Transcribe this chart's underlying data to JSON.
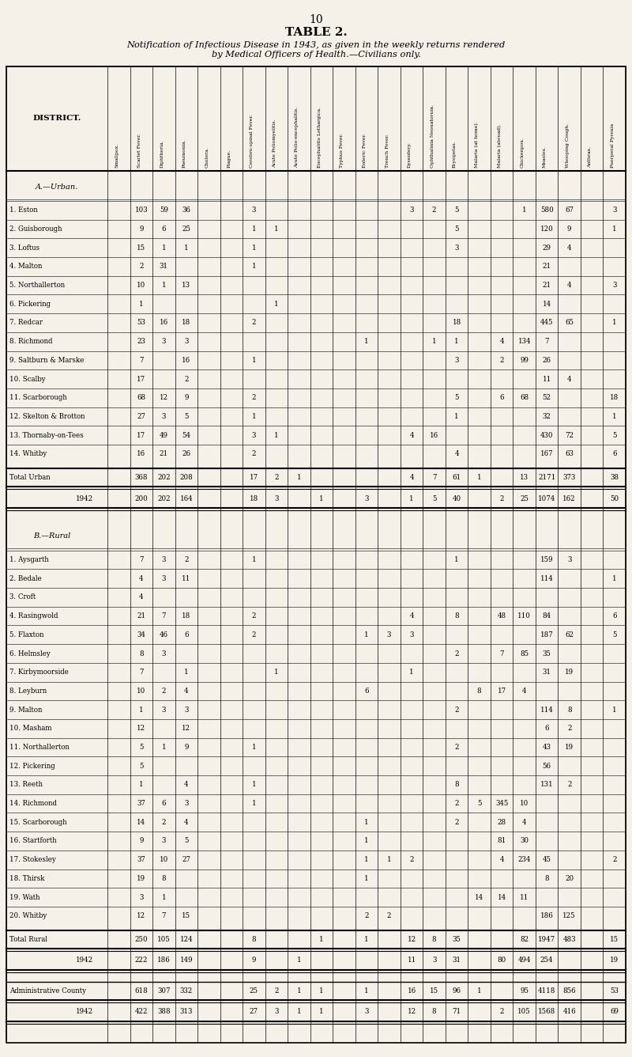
{
  "page_number": "10",
  "title": "TABLE 2.",
  "subtitle": "Notification of Infectious Disease in 1943, as given in the weekly returns rendered\nby Medical Officers of Health.—Civilians only.",
  "background_color": "#f5f0e8",
  "col_headers": [
    "Smallpox.",
    "Scarlet Fever.",
    "Diphtheria.",
    "Pneumonia.",
    "Cholera.",
    "Plague.",
    "Cerebro-spinal Fever.",
    "Acute Poliomyelitis.",
    "Acute Polio-encephalitis.",
    "Encephalitis Lethargica.",
    "Typhus Fever.",
    "Enteric Fever.",
    "Trench Fever.",
    "Dysentery.",
    "Ophthalmia Neonatorum.",
    "Erysipelas.",
    "Malaria (at home).",
    "Malaria (abroad).",
    "Chickenpox.",
    "Measles.",
    "Whooping Cough.",
    "Anthrax.",
    "Puerperal Pyrexia"
  ],
  "section_urban_label": "A.—Urban.",
  "section_rural_label": "B.—Rural",
  "urban_rows": [
    [
      "1. Eston",
      "",
      "103",
      "59",
      "36",
      "",
      "",
      "3",
      "",
      "",
      "",
      "",
      "",
      "",
      "3",
      "2",
      "5",
      "",
      "",
      "1",
      "580",
      "67",
      "",
      "3"
    ],
    [
      "2. Guisborough",
      "",
      "9",
      "6",
      "25",
      "",
      "",
      "1",
      "1",
      "",
      "",
      "",
      "",
      "",
      "",
      "",
      "5",
      "",
      "",
      "",
      "120",
      "9",
      "",
      "1"
    ],
    [
      "3. Loftus",
      "",
      "15",
      "1",
      "1",
      "",
      "",
      "1",
      "",
      "",
      "",
      "",
      "",
      "",
      "",
      "",
      "3",
      "",
      "",
      "",
      "29",
      "4",
      "",
      ""
    ],
    [
      "4. Malton",
      "",
      "2",
      "31",
      "",
      "",
      "",
      "1",
      "",
      "",
      "",
      "",
      "",
      "",
      "",
      "",
      "",
      "",
      "",
      "",
      "21",
      "",
      "",
      ""
    ],
    [
      "5. Northallerton",
      "",
      "10",
      "1",
      "13",
      "",
      "",
      "",
      "",
      "",
      "",
      "",
      "",
      "",
      "",
      "",
      "",
      "",
      "",
      "",
      "21",
      "4",
      "",
      "3"
    ],
    [
      "6. Pickering",
      "",
      "1",
      "",
      "",
      "",
      "",
      "",
      "1",
      "",
      "",
      "",
      "",
      "",
      "",
      "",
      "",
      "",
      "",
      "",
      "14",
      "",
      "",
      ""
    ],
    [
      "7. Redcar",
      "",
      "53",
      "16",
      "18",
      "",
      "",
      "2",
      "",
      "",
      "",
      "",
      "",
      "",
      "",
      "",
      "18",
      "",
      "",
      "",
      "445",
      "65",
      "",
      "1"
    ],
    [
      "8. Richmond",
      "",
      "23",
      "3",
      "3",
      "",
      "",
      "",
      "",
      "",
      "",
      "",
      "1",
      "",
      "",
      "1",
      "1",
      "",
      "4",
      "134",
      "7",
      "",
      "",
      ""
    ],
    [
      "9. Saltburn & Marske",
      "",
      "7",
      "",
      "16",
      "",
      "",
      "1",
      "",
      "",
      "",
      "",
      "",
      "",
      "",
      "",
      "3",
      "",
      "2",
      "99",
      "26",
      "",
      "",
      ""
    ],
    [
      "10. Scalby",
      "",
      "17",
      "",
      "2",
      "",
      "",
      "",
      "",
      "",
      "",
      "",
      "",
      "",
      "",
      "",
      "",
      "",
      "",
      "",
      "11",
      "4",
      "",
      ""
    ],
    [
      "11. Scarborough",
      "",
      "68",
      "12",
      "9",
      "",
      "",
      "2",
      "",
      "",
      "",
      "",
      "",
      "",
      "",
      "",
      "5",
      "",
      "6",
      "68",
      "52",
      "",
      "",
      "18"
    ],
    [
      "12. Skelton & Brotton",
      "",
      "27",
      "3",
      "5",
      "",
      "",
      "1",
      "",
      "",
      "",
      "",
      "",
      "",
      "",
      "",
      "1",
      "",
      "",
      "",
      "32",
      "",
      "",
      "1"
    ],
    [
      "13. Thornaby-on-Tees",
      "",
      "17",
      "49",
      "54",
      "",
      "",
      "3",
      "1",
      "",
      "",
      "",
      "",
      "",
      "4",
      "16",
      "",
      "",
      "",
      "",
      "430",
      "72",
      "",
      "5"
    ],
    [
      "14. Whitby",
      "",
      "16",
      "21",
      "26",
      "",
      "",
      "2",
      "",
      "",
      "",
      "",
      "",
      "",
      "",
      "",
      "4",
      "",
      "",
      "",
      "167",
      "63",
      "",
      "6"
    ]
  ],
  "urban_total": [
    "Total Urban",
    "",
    "368",
    "202",
    "208",
    "",
    "",
    "17",
    "2",
    "1",
    "",
    "",
    "",
    "",
    "4",
    "7",
    "61",
    "1",
    "",
    "13",
    "2171",
    "373",
    "",
    "38"
  ],
  "urban_1942": [
    "1942",
    "",
    "200",
    "202",
    "164",
    "",
    "",
    "18",
    "3",
    "",
    "1",
    "",
    "3",
    "",
    "1",
    "5",
    "40",
    "",
    "2",
    "25",
    "1074",
    "162",
    "",
    "50"
  ],
  "rural_rows": [
    [
      "1. Aysgarth",
      "",
      "7",
      "3",
      "2",
      "",
      "",
      "1",
      "",
      "",
      "",
      "",
      "",
      "",
      "",
      "",
      "1",
      "",
      "",
      "",
      "159",
      "3",
      "",
      ""
    ],
    [
      "2. Bedale",
      "",
      "4",
      "3",
      "11",
      "",
      "",
      "",
      "",
      "",
      "",
      "",
      "",
      "",
      "",
      "",
      "",
      "",
      "",
      "",
      "114",
      "",
      "",
      "1"
    ],
    [
      "3. Croft",
      "",
      "4",
      "",
      "",
      "",
      "",
      "",
      "",
      "",
      "",
      "",
      "",
      "",
      "",
      "",
      "",
      "",
      "",
      "",
      "",
      "",
      "",
      ""
    ],
    [
      "4. Rasingwold",
      "",
      "21",
      "7",
      "18",
      "",
      "",
      "2",
      "",
      "",
      "",
      "",
      "",
      "",
      "4",
      "",
      "8",
      "",
      "48",
      "110",
      "84",
      "",
      "",
      "6"
    ],
    [
      "5. Flaxton",
      "",
      "34",
      "46",
      "6",
      "",
      "",
      "2",
      "",
      "",
      "",
      "",
      "1",
      "3",
      "3",
      "",
      "",
      "",
      "",
      "",
      "187",
      "62",
      "",
      "5"
    ],
    [
      "6. Helmsley",
      "",
      "8",
      "3",
      "",
      "",
      "",
      "",
      "",
      "",
      "",
      "",
      "",
      "",
      "",
      "",
      "2",
      "",
      "7",
      "85",
      "35",
      "",
      "",
      ""
    ],
    [
      "7. Kirbymoorside",
      "",
      "7",
      "",
      "1",
      "",
      "",
      "",
      "1",
      "",
      "",
      "",
      "",
      "",
      "1",
      "",
      "",
      "",
      "",
      "",
      "31",
      "19",
      "",
      ""
    ],
    [
      "8. Leyburn",
      "",
      "10",
      "2",
      "4",
      "",
      "",
      "",
      "",
      "",
      "",
      "",
      "6",
      "",
      "",
      "",
      "",
      "8",
      "17",
      "4",
      "",
      "",
      "",
      ""
    ],
    [
      "9. Malton",
      "",
      "1",
      "3",
      "3",
      "",
      "",
      "",
      "",
      "",
      "",
      "",
      "",
      "",
      "",
      "",
      "2",
      "",
      "",
      "",
      "114",
      "8",
      "",
      "1"
    ],
    [
      "10. Masham",
      "",
      "12",
      "",
      "12",
      "",
      "",
      "",
      "",
      "",
      "",
      "",
      "",
      "",
      "",
      "",
      "",
      "",
      "",
      "",
      "6",
      "2",
      "",
      ""
    ],
    [
      "11. Northallerton",
      "",
      "5",
      "1",
      "9",
      "",
      "",
      "1",
      "",
      "",
      "",
      "",
      "",
      "",
      "",
      "",
      "2",
      "",
      "",
      "",
      "43",
      "19",
      "",
      ""
    ],
    [
      "12. Pickering",
      "",
      "5",
      "",
      "",
      "",
      "",
      "",
      "",
      "",
      "",
      "",
      "",
      "",
      "",
      "",
      "",
      "",
      "",
      "",
      "56",
      "",
      "",
      ""
    ],
    [
      "13. Reeth",
      "",
      "1",
      "",
      "4",
      "",
      "",
      "1",
      "",
      "",
      "",
      "",
      "",
      "",
      "",
      "",
      "8",
      "",
      "",
      "",
      "131",
      "2",
      "",
      ""
    ],
    [
      "14. Richmond",
      "",
      "37",
      "6",
      "3",
      "",
      "",
      "1",
      "",
      "",
      "",
      "",
      "",
      "",
      "",
      "",
      "2",
      "5",
      "345",
      "10",
      "",
      "",
      "",
      ""
    ],
    [
      "15. Scarborough",
      "",
      "14",
      "2",
      "4",
      "",
      "",
      "",
      "",
      "",
      "",
      "",
      "1",
      "",
      "",
      "",
      "2",
      "",
      "28",
      "4",
      "",
      "",
      "",
      ""
    ],
    [
      "16. Startforth",
      "",
      "9",
      "3",
      "5",
      "",
      "",
      "",
      "",
      "",
      "",
      "",
      "1",
      "",
      "",
      "",
      "",
      "",
      "81",
      "30",
      "",
      "",
      "",
      ""
    ],
    [
      "17. Stokesley",
      "",
      "37",
      "10",
      "27",
      "",
      "",
      "",
      "",
      "",
      "",
      "",
      "1",
      "1",
      "2",
      "",
      "",
      "",
      "4",
      "234",
      "45",
      "",
      "",
      "2"
    ],
    [
      "18. Thirsk",
      "",
      "19",
      "8",
      "",
      "",
      "",
      "",
      "",
      "",
      "",
      "",
      "1",
      "",
      "",
      "",
      "",
      "",
      "",
      "",
      "8",
      "20",
      "",
      ""
    ],
    [
      "19. Wath",
      "",
      "3",
      "1",
      "",
      "",
      "",
      "",
      "",
      "",
      "",
      "",
      "",
      "",
      "",
      "",
      "",
      "14",
      "14",
      "11",
      "",
      "",
      "",
      ""
    ],
    [
      "20. Whitby",
      "",
      "12",
      "7",
      "15",
      "",
      "",
      "",
      "",
      "",
      "",
      "",
      "2",
      "2",
      "",
      "",
      "",
      "",
      "",
      "",
      "186",
      "125",
      "",
      ""
    ]
  ],
  "rural_total": [
    "Total Rural",
    "",
    "250",
    "105",
    "124",
    "",
    "",
    "8",
    "",
    "",
    "1",
    "",
    "1",
    "",
    "12",
    "8",
    "35",
    "",
    "",
    "82",
    "1947",
    "483",
    "",
    "15"
  ],
  "rural_1942": [
    "1942",
    "",
    "222",
    "186",
    "149",
    "",
    "",
    "9",
    "",
    "1",
    "",
    "",
    "",
    "",
    "11",
    "3",
    "31",
    "",
    "80",
    "494",
    "254",
    "",
    "",
    "19"
  ],
  "admin_county": [
    "Administrative County",
    "",
    "618",
    "307",
    "332",
    "",
    "",
    "25",
    "2",
    "1",
    "1",
    "",
    "1",
    "",
    "16",
    "15",
    "96",
    "1",
    "",
    "95",
    "4118",
    "856",
    "",
    "53"
  ],
  "admin_1942": [
    "1942",
    "",
    "422",
    "388",
    "313",
    "",
    "",
    "27",
    "3",
    "1",
    "1",
    "",
    "3",
    "",
    "12",
    "8",
    "71",
    "",
    "2",
    "105",
    "1568",
    "416",
    "",
    "69"
  ]
}
